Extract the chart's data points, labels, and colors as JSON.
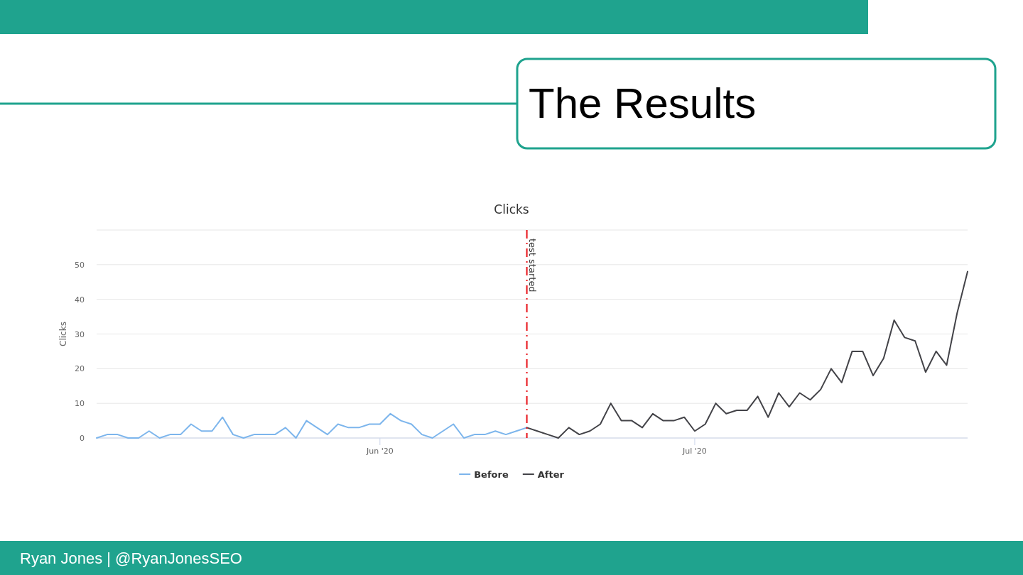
{
  "chart_data": {
    "type": "line",
    "title": "The Results",
    "subtitle": "Clicks",
    "ylabel": "Clicks",
    "series": [
      {
        "name": "Before",
        "color": "#7cb5ec",
        "x": [
          "2020-05-05",
          "2020-05-06",
          "2020-05-07",
          "2020-05-08",
          "2020-05-09",
          "2020-05-10",
          "2020-05-11",
          "2020-05-12",
          "2020-05-13",
          "2020-05-14",
          "2020-05-15",
          "2020-05-16",
          "2020-05-17",
          "2020-05-18",
          "2020-05-19",
          "2020-05-20",
          "2020-05-21",
          "2020-05-22",
          "2020-05-23",
          "2020-05-24",
          "2020-05-25",
          "2020-05-26",
          "2020-05-27",
          "2020-05-28",
          "2020-05-29",
          "2020-05-30",
          "2020-05-31",
          "2020-06-01",
          "2020-06-02",
          "2020-06-03",
          "2020-06-04",
          "2020-06-05",
          "2020-06-06",
          "2020-06-07",
          "2020-06-08",
          "2020-06-09",
          "2020-06-10",
          "2020-06-11",
          "2020-06-12",
          "2020-06-13",
          "2020-06-14",
          "2020-06-15"
        ],
        "values": [
          0,
          1,
          1,
          0,
          0,
          2,
          0,
          1,
          1,
          4,
          2,
          2,
          6,
          1,
          0,
          1,
          1,
          1,
          3,
          0,
          5,
          3,
          1,
          4,
          3,
          3,
          4,
          4,
          7,
          5,
          4,
          1,
          0,
          2,
          4,
          0,
          1,
          1,
          2,
          1,
          2,
          3
        ]
      },
      {
        "name": "After",
        "color": "#434348",
        "x": [
          "2020-06-15",
          "2020-06-16",
          "2020-06-17",
          "2020-06-18",
          "2020-06-19",
          "2020-06-20",
          "2020-06-21",
          "2020-06-22",
          "2020-06-23",
          "2020-06-24",
          "2020-06-25",
          "2020-06-26",
          "2020-06-27",
          "2020-06-28",
          "2020-06-29",
          "2020-06-30",
          "2020-07-01",
          "2020-07-02",
          "2020-07-03",
          "2020-07-04",
          "2020-07-05",
          "2020-07-06",
          "2020-07-07",
          "2020-07-08",
          "2020-07-09",
          "2020-07-10",
          "2020-07-11",
          "2020-07-12",
          "2020-07-13",
          "2020-07-14",
          "2020-07-15",
          "2020-07-16",
          "2020-07-17",
          "2020-07-18",
          "2020-07-19",
          "2020-07-20",
          "2020-07-21",
          "2020-07-22",
          "2020-07-23",
          "2020-07-24",
          "2020-07-25",
          "2020-07-26",
          "2020-07-27"
        ],
        "values": [
          3,
          2,
          1,
          0,
          3,
          1,
          2,
          4,
          10,
          5,
          5,
          3,
          7,
          5,
          5,
          6,
          2,
          4,
          10,
          7,
          8,
          8,
          12,
          6,
          13,
          9,
          13,
          11,
          14,
          20,
          16,
          25,
          25,
          18,
          23,
          34,
          29,
          28,
          19,
          25,
          21,
          36,
          48
        ]
      }
    ],
    "xlim": [
      "2020-05-05",
      "2020-07-27"
    ],
    "xticks": [
      {
        "value": "2020-06-01",
        "label": "Jun '20"
      },
      {
        "value": "2020-07-01",
        "label": "Jul '20"
      }
    ],
    "ylim": [
      0,
      60
    ],
    "yticks": [
      0,
      10,
      20,
      30,
      40,
      50,
      {
        "value": 60,
        "label": null
      }
    ],
    "grid": "y",
    "legend": "bottom",
    "ref_lines": [
      {
        "axis": "x",
        "value": "2020-06-15",
        "label": "test started",
        "color": "#e8141b",
        "line_style": "dashdot"
      }
    ],
    "annotations": [
      "Ryan Jones | @RyanJonesSEO"
    ]
  }
}
